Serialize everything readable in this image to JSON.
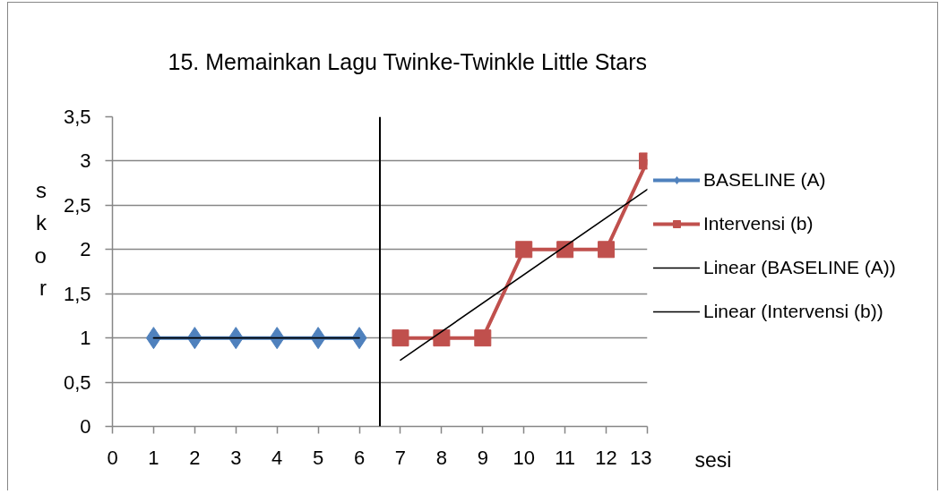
{
  "chart_data": {
    "type": "line",
    "title": "15. Memainkan Lagu Twinke-Twinkle Little Stars",
    "xlabel": "sesi",
    "ylabel": "skor",
    "xlim": [
      0,
      13
    ],
    "xticks": [
      0,
      1,
      2,
      3,
      4,
      5,
      6,
      7,
      8,
      9,
      10,
      11,
      12,
      13
    ],
    "ylim": [
      0,
      3.5
    ],
    "yticks": [
      0,
      {
        "value": 0.5,
        "label": "0,5"
      },
      1,
      {
        "value": 1.5,
        "label": "1,5"
      },
      2,
      {
        "value": 2.5,
        "label": "2,5"
      },
      3,
      {
        "value": 3.5,
        "label": "3,5"
      }
    ],
    "grid": "y",
    "legend": "right",
    "series": [
      {
        "name": "BASELINE (A)",
        "color": "#4f81bd",
        "marker": "diamond",
        "x": [
          1,
          2,
          3,
          4,
          5,
          6
        ],
        "values": [
          1,
          1,
          1,
          1,
          1,
          1
        ]
      },
      {
        "name": "Intervensi (b)",
        "color": "#c0504d",
        "marker": "square",
        "x": [
          7,
          8,
          9,
          10,
          11,
          12,
          13
        ],
        "values": [
          1,
          1,
          1,
          2,
          2,
          2,
          3
        ]
      },
      {
        "name": "Linear (BASELINE (A))",
        "color": "#000000",
        "x": [
          1,
          6
        ],
        "values": [
          1,
          1
        ]
      },
      {
        "name": "Linear (Intervensi (b))",
        "color": "#000000",
        "x": [
          7,
          13
        ],
        "values": [
          0.75,
          2.68
        ]
      }
    ],
    "ref_lines": [
      {
        "axis": "x",
        "value": 6.5,
        "color": "#000000"
      }
    ]
  }
}
